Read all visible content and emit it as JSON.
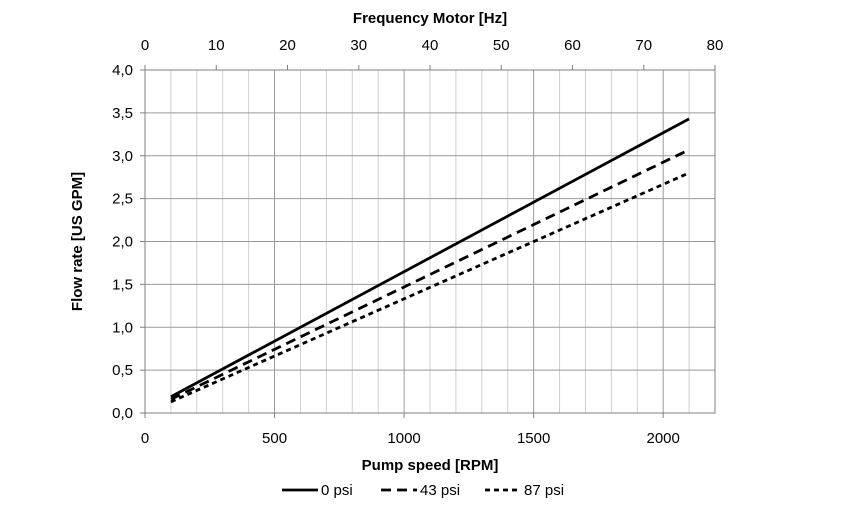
{
  "chart_data": {
    "type": "line",
    "xlabel": "Pump speed [RPM]",
    "x2label": "Frequency Motor [Hz]",
    "ylabel": "Flow rate [US GPM]",
    "xlim": [
      0,
      2200
    ],
    "x2lim": [
      0,
      80
    ],
    "ylim": [
      0,
      4.0
    ],
    "xticks": [
      "0",
      "500",
      "1000",
      "1500",
      "2000"
    ],
    "x2ticks": [
      "0",
      "10",
      "20",
      "30",
      "40",
      "50",
      "60",
      "70",
      "80"
    ],
    "yticks": [
      "0,0",
      "0,5",
      "1,0",
      "1,5",
      "2,0",
      "2,5",
      "3,0",
      "3,5",
      "4,0"
    ],
    "grid": true,
    "legend_position": "bottom",
    "series": [
      {
        "name": "0 psi",
        "style": "solid",
        "color": "#000000",
        "x": [
          100,
          2100
        ],
        "y": [
          0.19,
          3.43
        ]
      },
      {
        "name": "43 psi",
        "style": "dashed",
        "color": "#000000",
        "x": [
          100,
          2100
        ],
        "y": [
          0.16,
          3.07
        ]
      },
      {
        "name": "87 psi",
        "style": "dotted",
        "color": "#000000",
        "x": [
          100,
          2100
        ],
        "y": [
          0.13,
          2.8
        ]
      }
    ]
  }
}
